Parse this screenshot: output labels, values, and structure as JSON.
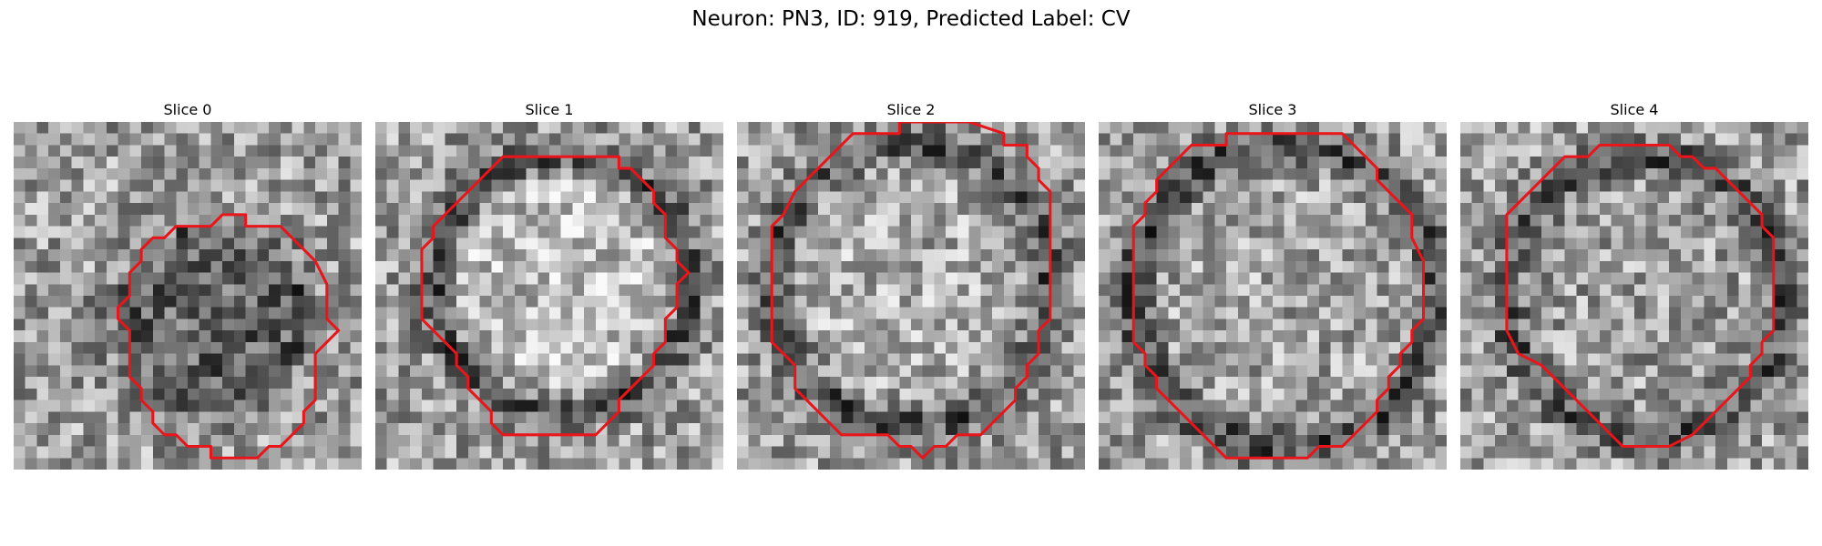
{
  "figure": {
    "title": "Neuron: PN3, ID: 919, Predicted Label: CV"
  },
  "panels": [
    {
      "title": "Slice 0"
    },
    {
      "title": "Slice 1"
    },
    {
      "title": "Slice 2"
    },
    {
      "title": "Slice 3"
    },
    {
      "title": "Slice 4"
    }
  ],
  "colors": {
    "contour": "#e8151b",
    "background": "#ffffff"
  }
}
